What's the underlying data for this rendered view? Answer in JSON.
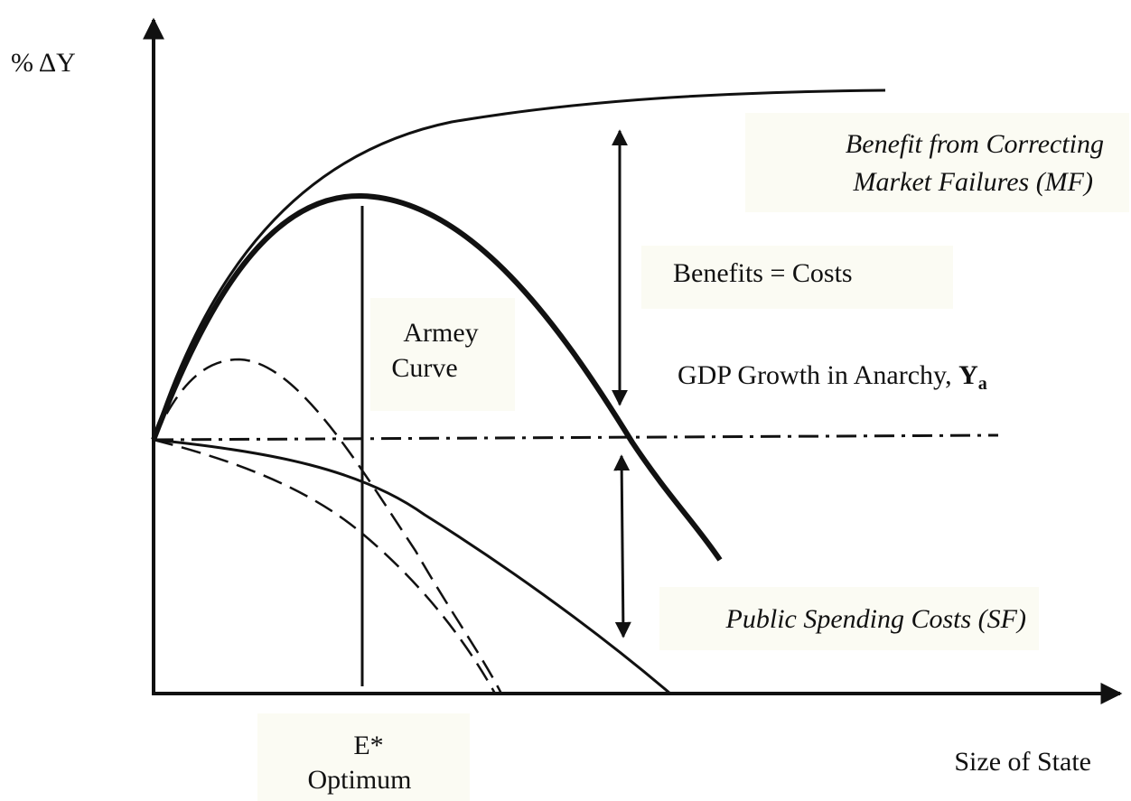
{
  "y_axis_label": "% ΔY",
  "x_axis_label": "Size of State",
  "labels": {
    "mf": [
      "Benefit from Correcting",
      "Market Failures (MF)"
    ],
    "equality": "Benefits = Costs",
    "armey": [
      "Armey",
      "Curve"
    ],
    "anarchy": {
      "text": "GDP Growth in Anarchy, ",
      "symbol": "Y",
      "subscript": "a"
    },
    "sf": "Public Spending Costs (SF)",
    "optimum": [
      "E*",
      "Optimum"
    ]
  }
}
